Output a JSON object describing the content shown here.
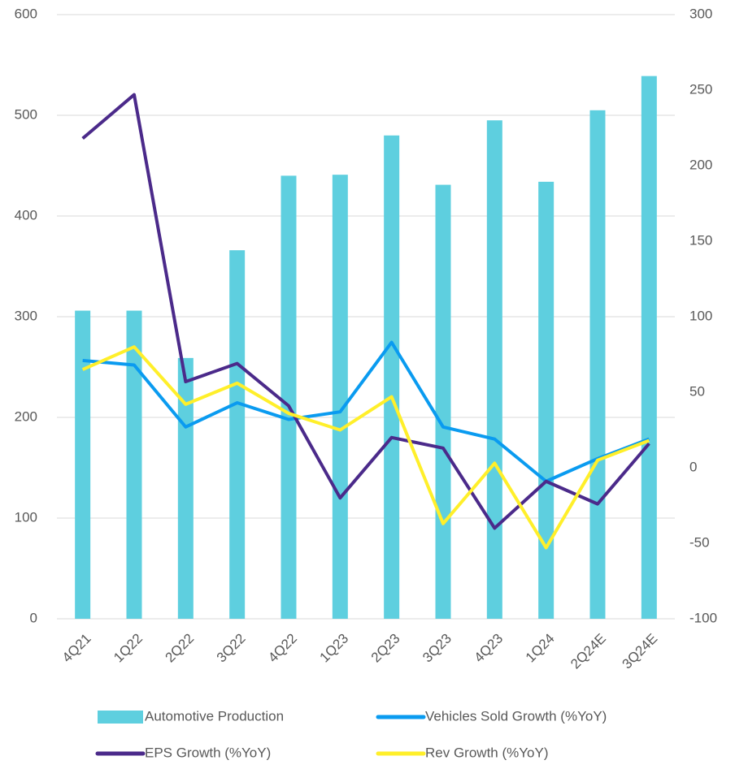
{
  "chart_data": {
    "type": "bar",
    "categories": [
      "4Q21",
      "1Q22",
      "2Q22",
      "3Q22",
      "4Q22",
      "1Q23",
      "2Q23",
      "3Q23",
      "4Q23",
      "1Q24",
      "2Q24E",
      "3Q24E"
    ],
    "ylim": [
      0,
      600
    ],
    "yticks": [
      0,
      100,
      200,
      300,
      400,
      500,
      600
    ],
    "y2lim": [
      -100,
      300
    ],
    "y2ticks": [
      -100,
      -50,
      0,
      50,
      100,
      150,
      200,
      250,
      300
    ],
    "grid": true,
    "legend": "bottom",
    "series": [
      {
        "name": "Automotive Production",
        "type": "bar",
        "color": "#5ecfdf",
        "values": [
          306,
          306,
          259,
          366,
          440,
          441,
          480,
          431,
          495,
          434,
          505,
          539
        ]
      },
      {
        "name": "Vehicles Sold Growth (%YoY)",
        "type": "line",
        "axis": "y2",
        "color": "#0a9bf0",
        "values": [
          71,
          68,
          27,
          43,
          32,
          37,
          83,
          27,
          19,
          -9,
          6,
          19
        ]
      },
      {
        "name": "EPS Growth (%YoY)",
        "type": "line",
        "axis": "y2",
        "color": "#4b2a8a",
        "values": [
          218,
          247,
          57,
          69,
          41,
          -20,
          20,
          13,
          -40,
          -9,
          -24,
          16
        ]
      },
      {
        "name": "Rev Growth (%YoY)",
        "type": "line",
        "axis": "y2",
        "color": "#ffef2a",
        "values": [
          65,
          80,
          42,
          56,
          36,
          25,
          47,
          -37,
          3,
          -53,
          5,
          18
        ]
      }
    ]
  }
}
